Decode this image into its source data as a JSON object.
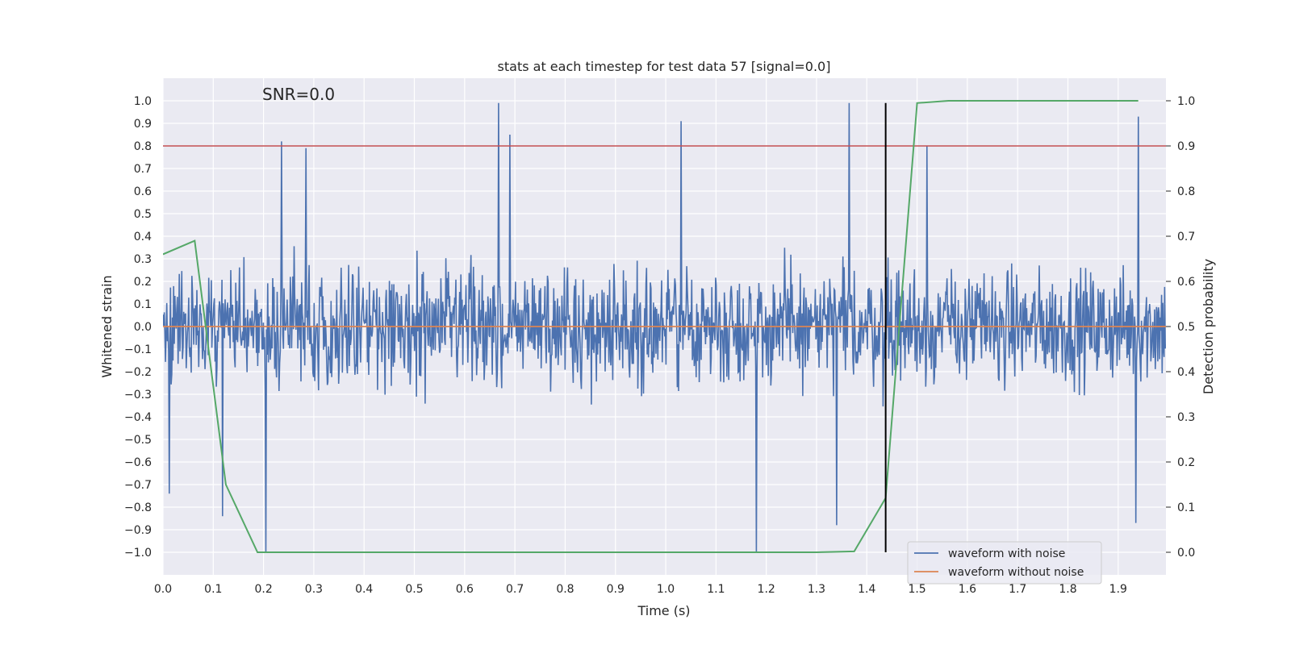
{
  "chart_data": {
    "type": "line",
    "title": "stats at each timestep for test data 57 [signal=0.0]",
    "annotation": "SNR=0.0",
    "xlabel": "Time (s)",
    "ylabel_left": "Whitened strain",
    "ylabel_right": "Detection probability",
    "xlim": [
      0.0,
      1.995
    ],
    "ylim_left": [
      -1.1,
      1.1
    ],
    "ylim_right": [
      -0.05,
      1.05
    ],
    "x_ticks": [
      "0.0",
      "0.1",
      "0.2",
      "0.3",
      "0.4",
      "0.5",
      "0.6",
      "0.7",
      "0.8",
      "0.9",
      "1.0",
      "1.1",
      "1.2",
      "1.3",
      "1.4",
      "1.5",
      "1.6",
      "1.7",
      "1.8",
      "1.9"
    ],
    "y_ticks_left": [
      "1.0",
      "0.9",
      "0.8",
      "0.7",
      "0.6",
      "0.5",
      "0.4",
      "0.3",
      "0.2",
      "0.1",
      "0.0",
      "−0.1",
      "−0.2",
      "−0.3",
      "−0.4",
      "−0.5",
      "−0.6",
      "−0.7",
      "−0.8",
      "−0.9",
      "−1.0"
    ],
    "y_ticks_right": [
      "1.0",
      "0.9",
      "0.8",
      "0.7",
      "0.6",
      "0.5",
      "0.4",
      "0.3",
      "0.2",
      "0.1",
      "0.0"
    ],
    "grid": true,
    "legend_position": "lower-right",
    "series": [
      {
        "name": "waveform with noise",
        "axis": "left",
        "color": "#4c72b0",
        "style": "dense random noise, mean 0, sampled on 0.0–1.995 s",
        "n_points": 1600,
        "peaks": [
          {
            "x": 0.667,
            "y": 0.99
          },
          {
            "x": 0.69,
            "y": 0.85
          },
          {
            "x": 1.03,
            "y": 0.91
          },
          {
            "x": 1.365,
            "y": 0.99
          },
          {
            "x": 1.94,
            "y": 0.93
          },
          {
            "x": 0.236,
            "y": 0.82
          },
          {
            "x": 0.285,
            "y": 0.79
          },
          {
            "x": 1.52,
            "y": 0.8
          },
          {
            "x": 0.205,
            "y": -1.0
          },
          {
            "x": 1.18,
            "y": -1.0
          },
          {
            "x": 1.935,
            "y": -0.87
          },
          {
            "x": 1.34,
            "y": -0.88
          },
          {
            "x": 0.118,
            "y": -0.84
          },
          {
            "x": 0.012,
            "y": -0.74
          }
        ]
      },
      {
        "name": "waveform without noise",
        "axis": "left",
        "color": "#dd8452",
        "x": [
          0.0,
          1.995
        ],
        "y": [
          0.0,
          0.0
        ]
      },
      {
        "name": "detection probability",
        "axis": "right",
        "color": "#55a868",
        "x": [
          0.0,
          0.063,
          0.125,
          0.188,
          0.25,
          0.5,
          1.0,
          1.3,
          1.375,
          1.4375,
          1.5,
          1.5625,
          1.75,
          1.94
        ],
        "y": [
          0.66,
          0.69,
          0.15,
          0.0,
          0.0,
          0.0,
          0.0,
          0.0,
          0.002,
          0.12,
          0.995,
          1.0,
          1.0,
          1.0
        ]
      }
    ],
    "threshold_line": {
      "axis": "left",
      "value": 0.8,
      "color": "#c44e52"
    },
    "detection_line": {
      "x": 1.4375,
      "y_from": -1.0,
      "y_to": 0.99,
      "color": "#000000"
    }
  }
}
